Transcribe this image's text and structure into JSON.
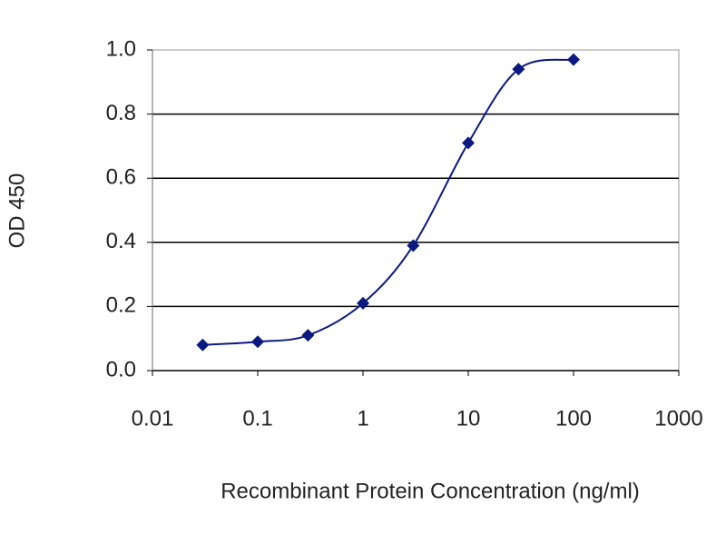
{
  "chart_data": {
    "type": "line",
    "x_label": "Recombinant Protein Concentration (ng/ml)",
    "y_label": "OD 450",
    "x": [
      0.03,
      0.1,
      0.3,
      1,
      3,
      10,
      30,
      100
    ],
    "series": [
      {
        "color": "#0a1a80",
        "values": [
          0.08,
          0.09,
          0.11,
          0.21,
          0.39,
          0.71,
          0.94,
          0.97
        ]
      }
    ],
    "xscale": "log",
    "xlim": [
      0.01,
      1000
    ],
    "xticks": [
      0.01,
      0.1,
      1,
      10,
      100,
      1000
    ],
    "ylim": [
      0,
      1
    ],
    "yticks": [
      {
        "value": 0,
        "label": "0.0"
      },
      0.2,
      0.4,
      0.6,
      0.8,
      {
        "value": 1,
        "label": "1.0"
      }
    ],
    "grid": true
  }
}
